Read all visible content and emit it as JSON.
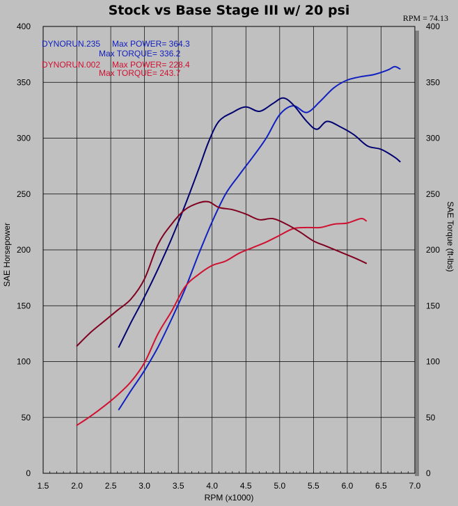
{
  "header": {
    "title": "Stock vs Base Stage III w/ 20 psi",
    "readout": "RPM = 74.13"
  },
  "colors": {
    "run235_power": "#1020c0",
    "run235_torque": "#000070",
    "run002_power": "#d01030",
    "run002_torque": "#800020"
  },
  "legend": [
    {
      "run": "DYNORUN.235",
      "power_label": "Max POWER= 364.3",
      "torque_label": "Max TORQUE= 336.2",
      "color": "#1020c0"
    },
    {
      "run": "DYNORUN.002",
      "power_label": "Max POWER= 228.4",
      "torque_label": "Max TORQUE= 243.7",
      "color": "#d01030"
    }
  ],
  "chart_data": {
    "type": "line",
    "title": "Stock vs Base Stage III w/ 20 psi",
    "xlabel": "RPM (x1000)",
    "ylabel": "SAE Horsepower",
    "y2label": "SAE Torque (ft-lbs)",
    "xlim": [
      1.5,
      7.0
    ],
    "ylim": [
      0,
      400
    ],
    "y2lim": [
      0,
      400
    ],
    "xticks": [
      "1.5",
      "2.0",
      "2.5",
      "3.0",
      "3.5",
      "4.0",
      "4.5",
      "5.0",
      "5.5",
      "6.0",
      "6.5",
      "7.0"
    ],
    "yticks": [
      "0",
      "50",
      "100",
      "150",
      "200",
      "250",
      "300",
      "350",
      "400"
    ],
    "grid": true,
    "series": [
      {
        "name": "DYNORUN.235 Power",
        "color": "#1020c0",
        "axis": "left",
        "x": [
          2.62,
          2.8,
          3.0,
          3.2,
          3.4,
          3.6,
          3.8,
          4.0,
          4.2,
          4.4,
          4.6,
          4.8,
          5.0,
          5.2,
          5.4,
          5.6,
          5.8,
          6.0,
          6.2,
          6.4,
          6.6,
          6.7,
          6.78
        ],
        "values": [
          57,
          74,
          92,
          113,
          138,
          165,
          196,
          225,
          250,
          267,
          283,
          300,
          321,
          329,
          323,
          333,
          345,
          352,
          355,
          357,
          361,
          364,
          362
        ]
      },
      {
        "name": "DYNORUN.235 Torque",
        "color": "#000070",
        "axis": "right",
        "x": [
          2.62,
          2.8,
          3.0,
          3.2,
          3.4,
          3.6,
          3.8,
          3.95,
          4.1,
          4.3,
          4.5,
          4.7,
          4.9,
          5.05,
          5.2,
          5.4,
          5.55,
          5.7,
          5.9,
          6.1,
          6.3,
          6.5,
          6.7,
          6.78
        ],
        "values": [
          113,
          135,
          158,
          183,
          210,
          240,
          272,
          297,
          315,
          323,
          328,
          324,
          331,
          336,
          330,
          315,
          308,
          315,
          310,
          303,
          293,
          290,
          283,
          279
        ]
      },
      {
        "name": "DYNORUN.002 Power",
        "color": "#d01030",
        "axis": "left",
        "x": [
          2.0,
          2.2,
          2.4,
          2.6,
          2.8,
          3.0,
          3.2,
          3.4,
          3.6,
          3.8,
          4.0,
          4.2,
          4.4,
          4.6,
          4.8,
          5.0,
          5.2,
          5.4,
          5.6,
          5.8,
          6.0,
          6.2,
          6.28
        ],
        "values": [
          43,
          51,
          60,
          70,
          82,
          99,
          125,
          145,
          167,
          178,
          186,
          190,
          197,
          202,
          207,
          213,
          219,
          220,
          220,
          223,
          224,
          228,
          226
        ]
      },
      {
        "name": "DYNORUN.002 Torque",
        "color": "#800020",
        "axis": "right",
        "x": [
          2.0,
          2.2,
          2.4,
          2.6,
          2.8,
          3.0,
          3.2,
          3.4,
          3.6,
          3.8,
          3.95,
          4.1,
          4.3,
          4.5,
          4.7,
          4.9,
          5.1,
          5.3,
          5.5,
          5.7,
          5.9,
          6.1,
          6.28
        ],
        "values": [
          114,
          126,
          136,
          146,
          156,
          174,
          205,
          223,
          236,
          242,
          243,
          238,
          236,
          232,
          227,
          228,
          223,
          216,
          208,
          203,
          198,
          193,
          188
        ]
      }
    ]
  }
}
